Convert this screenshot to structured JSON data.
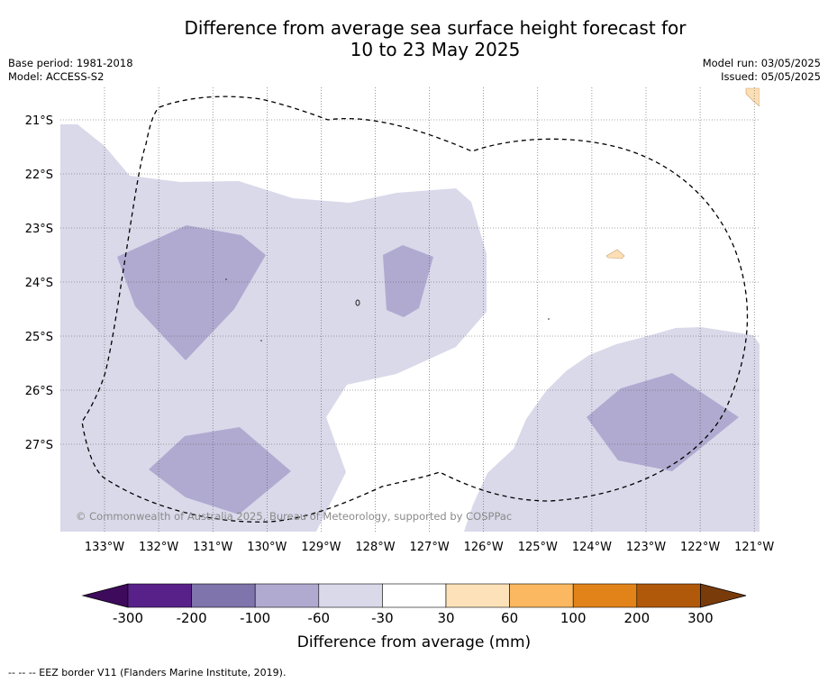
{
  "title_line1": "Difference from average sea surface height forecast for",
  "title_line2": "10 to 23 May 2025",
  "meta_left": {
    "base_period": "Base period: 1981-2018",
    "model": "Model: ACCESS-S2"
  },
  "meta_right": {
    "model_run": "Model run: 03/05/2025",
    "issued": "Issued: 05/05/2025"
  },
  "watermark": "© Commonwealth of Australia 2025, Bureau of Meteorology, supported by COSPPac",
  "map": {
    "lon_labels": [
      "133°W",
      "132°W",
      "131°W",
      "130°W",
      "129°W",
      "128°W",
      "127°W",
      "126°W",
      "125°W",
      "124°W",
      "123°W",
      "122°W",
      "121°W"
    ],
    "lat_labels": [
      "21°S",
      "22°S",
      "23°S",
      "24°S",
      "25°S",
      "26°S",
      "27°S"
    ],
    "colors": {
      "neg30_60": "#d9d9ea",
      "neg60_100": "#b0aad0",
      "pos30_60": "#fddfb5"
    }
  },
  "colorbar": {
    "title": "Difference from average (mm)",
    "tick_labels": [
      "-300",
      "-200",
      "-100",
      "-60",
      "-30",
      "30",
      "60",
      "100",
      "200",
      "300"
    ],
    "colors": [
      "#3e0a5c",
      "#58218a",
      "#7f74ab",
      "#b0aad0",
      "#d9d9ea",
      "#ffffff",
      "#fde1b8",
      "#fbb860",
      "#e2831a",
      "#b1590a",
      "#7a3b0b"
    ]
  },
  "footer": "-- -- -- EEZ border V11 (Flanders Marine Institute, 2019)."
}
